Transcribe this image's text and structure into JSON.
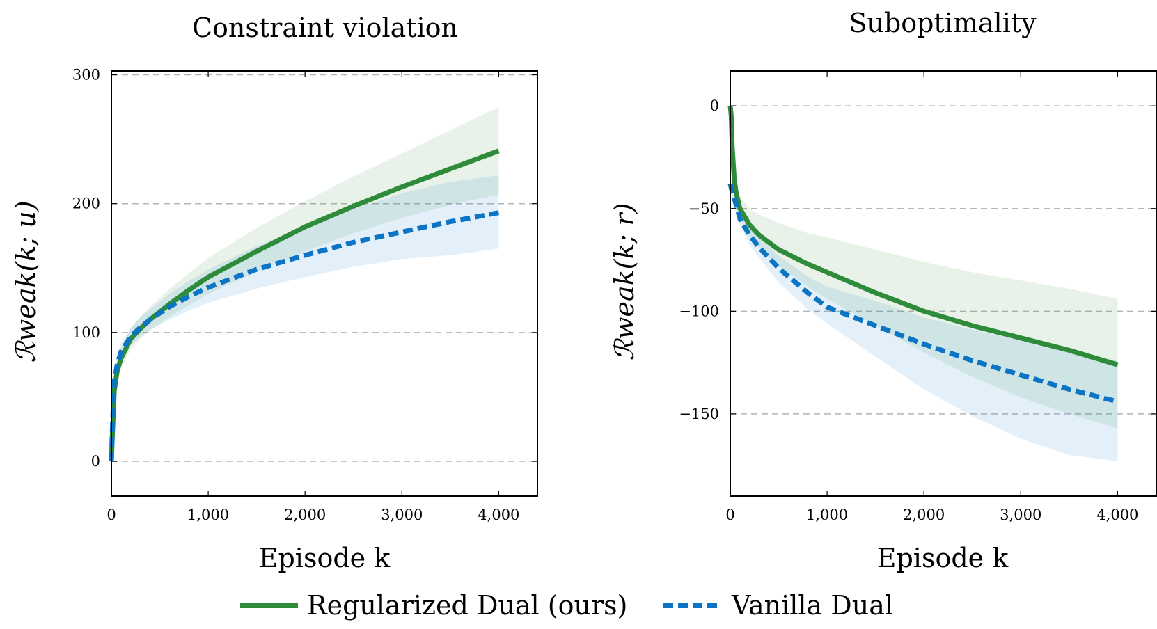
{
  "legend": {
    "entries": [
      {
        "label": "Regularized Dual (ours)",
        "color": "#2e8b3a",
        "style": "solid"
      },
      {
        "label": "Vanilla Dual",
        "color": "#0b74c4",
        "style": "dashed"
      }
    ],
    "placement": "bottom-center"
  },
  "chart_data": [
    {
      "type": "line",
      "title": "Constraint violation",
      "xlabel": "Episode k",
      "ylabel": "ℛweak(k; u)",
      "xlim": [
        0,
        4400
      ],
      "ylim": [
        -27,
        303
      ],
      "xticks": [
        0,
        1000,
        2000,
        3000,
        4000
      ],
      "xtick_labels": [
        "0",
        "1,000",
        "2,000",
        "3,000",
        "4,000"
      ],
      "yticks": [
        0,
        100,
        200,
        300
      ],
      "ytick_labels": [
        "0",
        "100",
        "200",
        "300"
      ],
      "grid": "horizontal dashed",
      "series": [
        {
          "name": "Regularized Dual (ours)",
          "color": "#2e8b3a",
          "dashed": false,
          "x": [
            0,
            10,
            30,
            60,
            100,
            200,
            300,
            400,
            600,
            800,
            1000,
            1500,
            2000,
            2500,
            3000,
            3500,
            4000
          ],
          "y": [
            0,
            20,
            55,
            70,
            80,
            95,
            103,
            110,
            122,
            133,
            143,
            163,
            182,
            198,
            213,
            227,
            241
          ],
          "upper": [
            0,
            25,
            62,
            78,
            88,
            103,
            112,
            120,
            134,
            146,
            158,
            181,
            202,
            221,
            239,
            257,
            275
          ],
          "lower": [
            0,
            15,
            48,
            62,
            72,
            87,
            95,
            102,
            112,
            121,
            130,
            147,
            163,
            177,
            189,
            199,
            207
          ]
        },
        {
          "name": "Vanilla Dual",
          "color": "#0b74c4",
          "dashed": true,
          "x": [
            0,
            10,
            30,
            60,
            100,
            200,
            300,
            400,
            600,
            800,
            1000,
            1500,
            2000,
            2500,
            3000,
            3500,
            4000
          ],
          "y": [
            0,
            25,
            62,
            75,
            85,
            97,
            104,
            110,
            120,
            128,
            135,
            149,
            160,
            170,
            178,
            186,
            193
          ],
          "upper": [
            0,
            30,
            70,
            83,
            92,
            104,
            112,
            118,
            130,
            140,
            149,
            167,
            182,
            196,
            208,
            217,
            222
          ],
          "lower": [
            0,
            20,
            55,
            67,
            77,
            90,
            97,
            102,
            110,
            117,
            123,
            134,
            143,
            151,
            157,
            160,
            165
          ]
        }
      ]
    },
    {
      "type": "line",
      "title": "Suboptimality",
      "xlabel": "Episode k",
      "ylabel": "ℛweak(k; r)",
      "xlim": [
        0,
        4400
      ],
      "ylim": [
        -190,
        17
      ],
      "xticks": [
        0,
        1000,
        2000,
        3000,
        4000
      ],
      "xtick_labels": [
        "0",
        "1,000",
        "2,000",
        "3,000",
        "4,000"
      ],
      "yticks": [
        0,
        -50,
        -100,
        -150
      ],
      "ytick_labels": [
        "0",
        "−50",
        "−100",
        "−150"
      ],
      "grid": "horizontal dashed",
      "series": [
        {
          "name": "Regularized Dual (ours)",
          "color": "#2e8b3a",
          "dashed": false,
          "x": [
            0,
            10,
            20,
            40,
            60,
            100,
            200,
            300,
            500,
            800,
            1000,
            1500,
            2000,
            2500,
            3000,
            3500,
            4000
          ],
          "y": [
            0,
            -5,
            -20,
            -35,
            -42,
            -50,
            -58,
            -63,
            -70,
            -77,
            -81,
            -91,
            -100,
            -107,
            -113,
            -119,
            -126
          ],
          "upper": [
            0,
            -3,
            -15,
            -30,
            -37,
            -44,
            -50,
            -53,
            -57,
            -62,
            -64,
            -70,
            -76,
            -81,
            -85,
            -89,
            -94
          ],
          "lower": [
            0,
            -7,
            -25,
            -40,
            -47,
            -55,
            -64,
            -69,
            -78,
            -88,
            -94,
            -107,
            -120,
            -132,
            -142,
            -150,
            -157
          ]
        },
        {
          "name": "Vanilla Dual",
          "color": "#0b74c4",
          "dashed": true,
          "x": [
            0,
            10,
            20,
            40,
            60,
            100,
            200,
            300,
            500,
            800,
            1000,
            1500,
            2000,
            2500,
            3000,
            3500,
            4000
          ],
          "y": [
            -38,
            -40,
            -42,
            -45,
            -48,
            -55,
            -63,
            -69,
            -79,
            -91,
            -98,
            -107,
            -116,
            -124,
            -131,
            -138,
            -144
          ],
          "upper": [
            -36,
            -38,
            -40,
            -43,
            -46,
            -52,
            -59,
            -64,
            -73,
            -83,
            -88,
            -95,
            -103,
            -109,
            -114,
            -119,
            -124
          ],
          "lower": [
            -40,
            -42,
            -45,
            -48,
            -52,
            -58,
            -68,
            -74,
            -86,
            -99,
            -106,
            -122,
            -138,
            -151,
            -162,
            -170,
            -173
          ]
        }
      ]
    }
  ]
}
